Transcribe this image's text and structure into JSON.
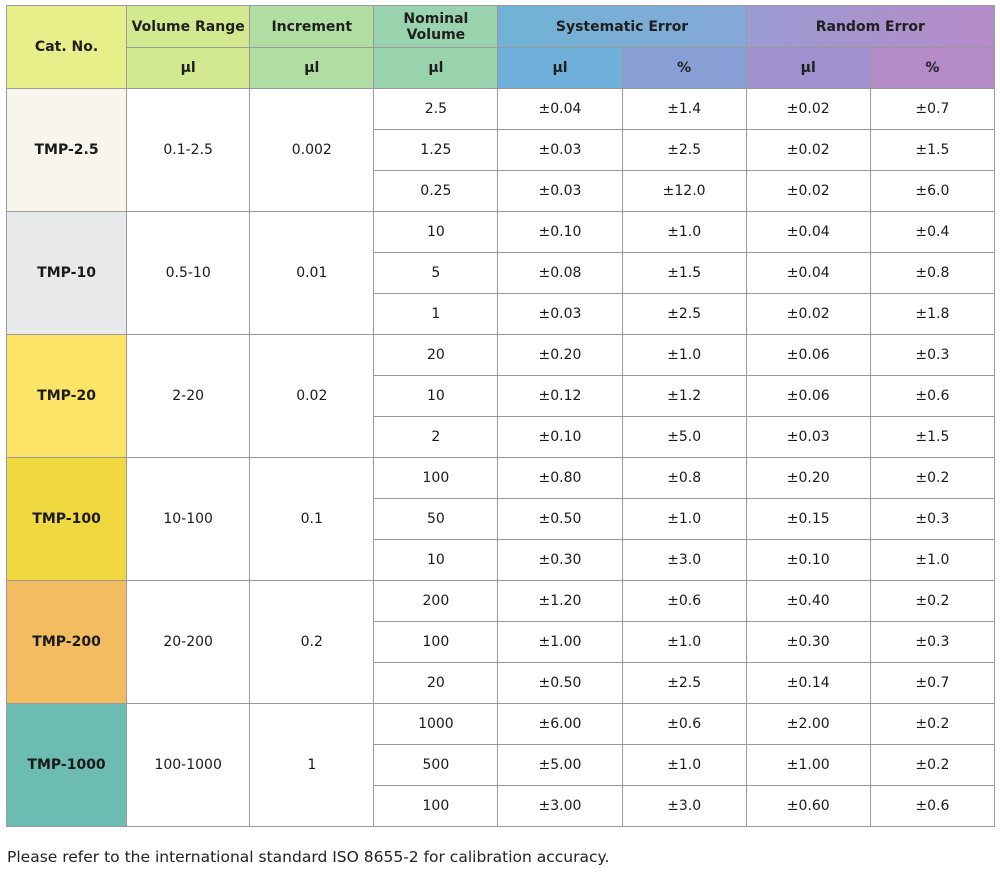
{
  "header": {
    "cat_no": "Cat. No.",
    "volume_range": "Volume Range",
    "increment": "Increment",
    "nominal_volume": "Nominal Volume",
    "systematic_error": "Systematic Error",
    "random_error": "Random Error",
    "units": [
      "µl",
      "µl",
      "µl",
      "µl",
      "%",
      "µl",
      "%"
    ]
  },
  "groups": [
    {
      "cat": "TMP-2.5",
      "range": "0.1-2.5",
      "increment": "0.002",
      "color": "#f8f6ea",
      "rows": [
        [
          "2.5",
          "±0.04",
          "±1.4",
          "±0.02",
          "±0.7"
        ],
        [
          "1.25",
          "±0.03",
          "±2.5",
          "±0.02",
          "±1.5"
        ],
        [
          "0.25",
          "±0.03",
          "±12.0",
          "±0.02",
          "±6.0"
        ]
      ]
    },
    {
      "cat": "TMP-10",
      "range": "0.5-10",
      "increment": "0.01",
      "color": "#e8e9eb",
      "rows": [
        [
          "10",
          "±0.10",
          "±1.0",
          "±0.04",
          "±0.4"
        ],
        [
          "5",
          "±0.08",
          "±1.5",
          "±0.04",
          "±0.8"
        ],
        [
          "1",
          "±0.03",
          "±2.5",
          "±0.02",
          "±1.8"
        ]
      ]
    },
    {
      "cat": "TMP-20",
      "range": "2-20",
      "increment": "0.02",
      "color": "#fce566",
      "rows": [
        [
          "20",
          "±0.20",
          "±1.0",
          "±0.06",
          "±0.3"
        ],
        [
          "10",
          "±0.12",
          "±1.2",
          "±0.06",
          "±0.6"
        ],
        [
          "2",
          "±0.10",
          "±5.0",
          "±0.03",
          "±1.5"
        ]
      ]
    },
    {
      "cat": "TMP-100",
      "range": "10-100",
      "increment": "0.1",
      "color": "#f0d940",
      "rows": [
        [
          "100",
          "±0.80",
          "±0.8",
          "±0.20",
          "±0.2"
        ],
        [
          "50",
          "±0.50",
          "±1.0",
          "±0.15",
          "±0.3"
        ],
        [
          "10",
          "±0.30",
          "±3.0",
          "±0.10",
          "±1.0"
        ]
      ]
    },
    {
      "cat": "TMP-200",
      "range": "20-200",
      "increment": "0.2",
      "color": "#f2bd61",
      "rows": [
        [
          "200",
          "±1.20",
          "±0.6",
          "±0.40",
          "±0.2"
        ],
        [
          "100",
          "±1.00",
          "±1.0",
          "±0.30",
          "±0.3"
        ],
        [
          "20",
          "±0.50",
          "±2.5",
          "±0.14",
          "±0.7"
        ]
      ]
    },
    {
      "cat": "TMP-1000",
      "range": "100-1000",
      "increment": "1",
      "color": "#6dbcb2",
      "rows": [
        [
          "1000",
          "±6.00",
          "±0.6",
          "±2.00",
          "±0.2"
        ],
        [
          "500",
          "±5.00",
          "±1.0",
          "±1.00",
          "±0.2"
        ],
        [
          "100",
          "±3.00",
          "±3.0",
          "±0.60",
          "±0.6"
        ]
      ]
    }
  ],
  "footnote": "Please refer to the international standard ISO 8655-2 for calibration accuracy."
}
